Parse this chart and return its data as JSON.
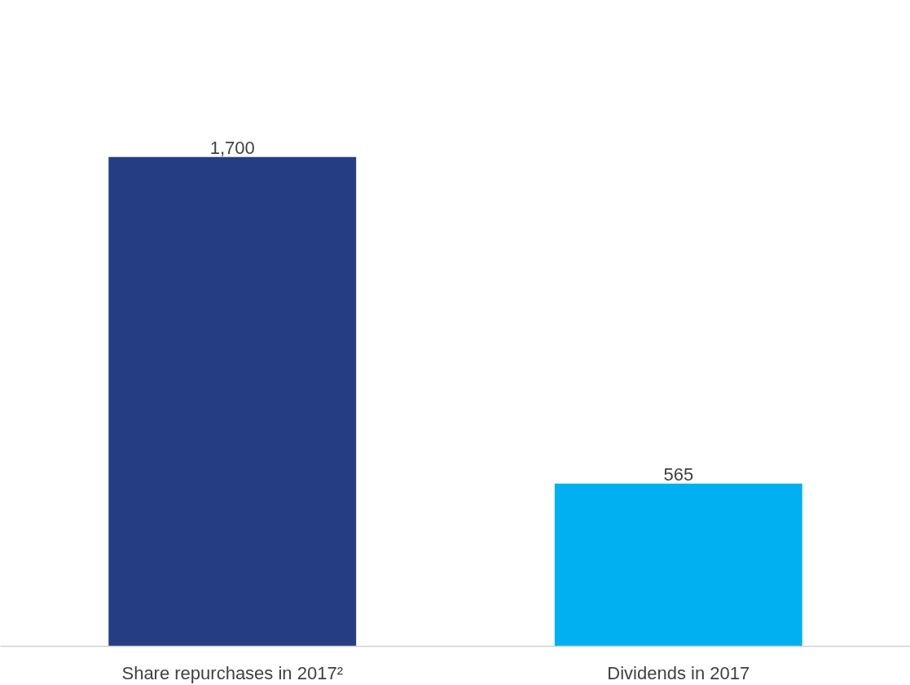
{
  "chart_data": {
    "type": "bar",
    "categories": [
      "Share repurchases in 2017²",
      "Dividends in 2017"
    ],
    "values": [
      1700,
      565
    ],
    "colors": [
      "#253d82",
      "#00b0f0"
    ],
    "value_labels": [
      "1,700",
      "565"
    ],
    "grid": false
  }
}
